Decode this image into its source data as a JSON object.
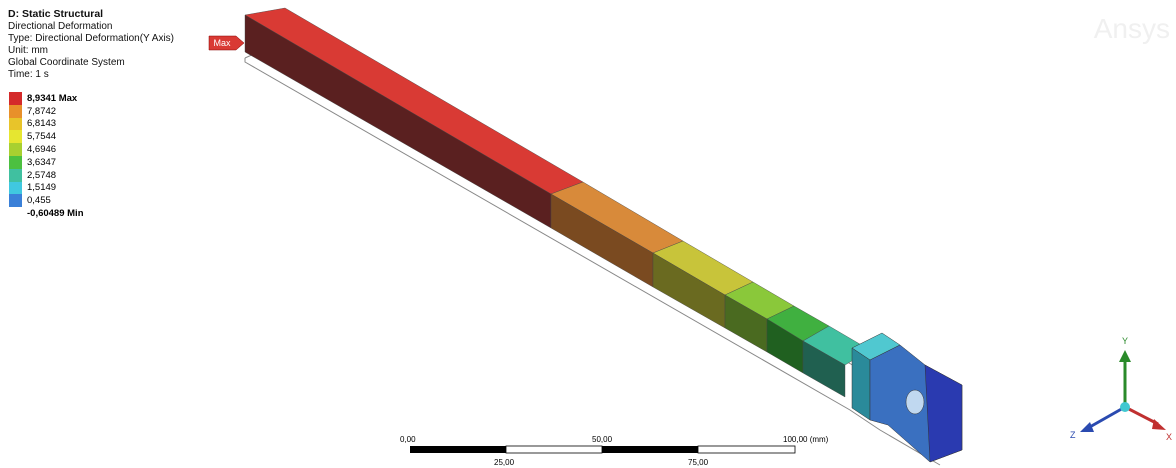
{
  "header": {
    "title": "D: Static Structural",
    "lines": [
      "Directional Deformation",
      "Type: Directional Deformation(Y Axis)",
      "Unit: mm",
      "Global Coordinate System",
      "Time: 1 s"
    ]
  },
  "legend": [
    {
      "label": "8,9341 Max",
      "color": "#d42a2a"
    },
    {
      "label": "7,8742",
      "color": "#e8902a"
    },
    {
      "label": "6,8143",
      "color": "#e8c42a"
    },
    {
      "label": "5,7544",
      "color": "#e6e630"
    },
    {
      "label": "4,6946",
      "color": "#a8d030"
    },
    {
      "label": "3,6347",
      "color": "#4cc040"
    },
    {
      "label": "2,5748",
      "color": "#40c0a0"
    },
    {
      "label": "1,5149",
      "color": "#40c8e0"
    },
    {
      "label": "0,455",
      "color": "#3a80d8"
    },
    {
      "label": "-0,60489 Min",
      "color": "#2a3ab0"
    }
  ],
  "probe": "Max",
  "scale_bar": {
    "top": [
      "0,00",
      "50,00",
      "100,00 (mm)"
    ],
    "bottom": [
      "25,00",
      "75,00"
    ]
  },
  "triad": {
    "y": "Y",
    "z": "Z",
    "x": "X"
  },
  "watermark": "Ansys"
}
